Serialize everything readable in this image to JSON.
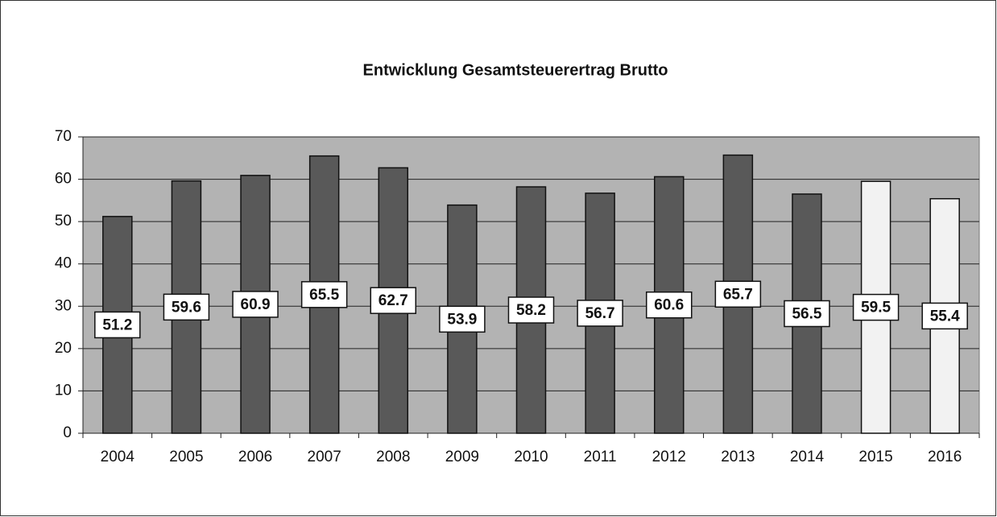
{
  "chart_data": {
    "type": "bar",
    "title": "Entwicklung Gesamtsteuerertrag Brutto",
    "categories": [
      "2004",
      "2005",
      "2006",
      "2007",
      "2008",
      "2009",
      "2010",
      "2011",
      "2012",
      "2013",
      "2014",
      "2015",
      "2016"
    ],
    "values": [
      51.2,
      59.6,
      60.9,
      65.5,
      62.7,
      53.9,
      58.2,
      56.7,
      60.6,
      65.7,
      56.5,
      59.5,
      55.4
    ],
    "colors": [
      "#595959",
      "#595959",
      "#595959",
      "#595959",
      "#595959",
      "#595959",
      "#595959",
      "#595959",
      "#595959",
      "#595959",
      "#595959",
      "#f2f2f2",
      "#f2f2f2"
    ],
    "plot_background": "#b3b3b3",
    "ylim": [
      0,
      70
    ],
    "yticks": [
      0,
      10,
      20,
      30,
      40,
      50,
      60,
      70
    ],
    "grid": true
  }
}
